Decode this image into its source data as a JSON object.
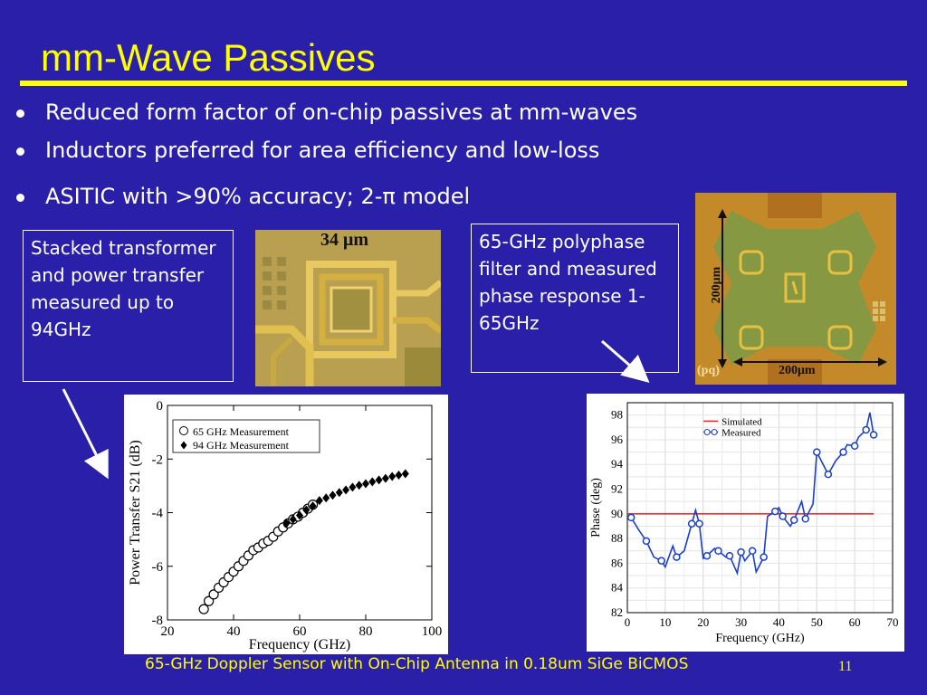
{
  "slide": {
    "title": "mm-Wave Passives",
    "bullets": [
      "Reduced form factor of on-chip passives at mm-waves",
      "Inductors preferred for area efficiency and low-loss",
      "ASITIC with >90% accuracy; 2-π model"
    ],
    "callout_left": "Stacked transformer and power transfer measured up to 94GHz",
    "callout_right": "65-GHz polyphase filter and measured phase response 1-65GHz",
    "photo_left_label": "34 μm",
    "photo_right_labels": {
      "vertical": "200μm",
      "horizontal": "200μm",
      "pq": "(pq)"
    },
    "footer": "65-GHz Doppler Sensor with On-Chip Antenna in 0.18um SiGe BiCMOS",
    "page_number": "11"
  },
  "colors": {
    "background": "#2a1fa8",
    "title": "#ffff00",
    "text": "#ffffff",
    "simulated": "#e8302a",
    "measured": "#1a3fcf"
  },
  "chart_data": [
    {
      "type": "scatter",
      "xlabel": "Frequency (GHz)",
      "ylabel": "Power Transfer S21 (dB)",
      "xlim": [
        20,
        100
      ],
      "ylim": [
        -8,
        0
      ],
      "xticks": [
        20,
        40,
        60,
        80,
        100
      ],
      "yticks": [
        -8,
        -6,
        -4,
        -2,
        0
      ],
      "legend_position": "top-left",
      "series": [
        {
          "name": "65 GHz Measurement",
          "marker": "open-circle",
          "x": [
            31,
            32.5,
            34,
            35.5,
            37,
            38.5,
            40,
            41.5,
            43,
            44.5,
            46,
            47.5,
            49,
            50.5,
            52,
            53.5,
            55,
            56.5,
            58,
            59.5,
            61,
            62.5,
            64
          ],
          "y": [
            -7.6,
            -7.3,
            -7.05,
            -6.8,
            -6.6,
            -6.4,
            -6.2,
            -6.0,
            -5.8,
            -5.6,
            -5.4,
            -5.3,
            -5.15,
            -5.05,
            -4.9,
            -4.7,
            -4.55,
            -4.4,
            -4.25,
            -4.15,
            -4.0,
            -3.85,
            -3.7
          ]
        },
        {
          "name": "94 GHz Measurement",
          "marker": "filled-diamond",
          "x": [
            56,
            58,
            60,
            62,
            64,
            66,
            68,
            70,
            72,
            74,
            76,
            78,
            80,
            82,
            84,
            86,
            88,
            90,
            92
          ],
          "y": [
            -4.4,
            -4.25,
            -4.1,
            -3.9,
            -3.75,
            -3.55,
            -3.45,
            -3.35,
            -3.25,
            -3.15,
            -3.05,
            -2.98,
            -2.92,
            -2.85,
            -2.78,
            -2.72,
            -2.65,
            -2.6,
            -2.55
          ]
        }
      ]
    },
    {
      "type": "line",
      "xlabel": "Frequency (GHz)",
      "ylabel": "Phase (deg)",
      "xlim": [
        0,
        70
      ],
      "ylim": [
        82,
        99
      ],
      "xticks": [
        0,
        10,
        20,
        30,
        40,
        50,
        60,
        70
      ],
      "yticks": [
        82,
        84,
        86,
        88,
        90,
        92,
        94,
        96,
        98
      ],
      "legend_position": "top-center",
      "series": [
        {
          "name": "Simulated",
          "x": [
            0,
            65
          ],
          "y": [
            90,
            90
          ]
        },
        {
          "name": "Measured",
          "x": [
            1,
            3,
            5,
            7,
            9,
            10,
            12,
            13,
            15,
            17,
            18,
            19,
            20,
            21,
            23,
            24,
            26,
            27,
            29,
            30,
            31,
            33,
            34,
            36,
            37,
            39,
            40,
            41,
            43,
            44,
            46,
            47,
            49,
            50,
            52,
            53,
            55,
            57,
            58,
            60,
            61,
            63,
            64,
            65
          ],
          "y": [
            89.7,
            88.7,
            87.8,
            86.5,
            86.2,
            85.7,
            87.4,
            86.5,
            87.0,
            89.2,
            90.3,
            89.2,
            86.4,
            86.6,
            87.2,
            87.0,
            86.5,
            86.6,
            85.2,
            86.9,
            86.2,
            87.0,
            85.3,
            86.5,
            89.8,
            90.2,
            90.5,
            89.8,
            89.0,
            89.5,
            91.0,
            89.6,
            90.8,
            95.0,
            93.8,
            93.2,
            94.3,
            95.0,
            95.6,
            95.5,
            96.2,
            96.8,
            98.2,
            96.4
          ]
        }
      ]
    }
  ]
}
